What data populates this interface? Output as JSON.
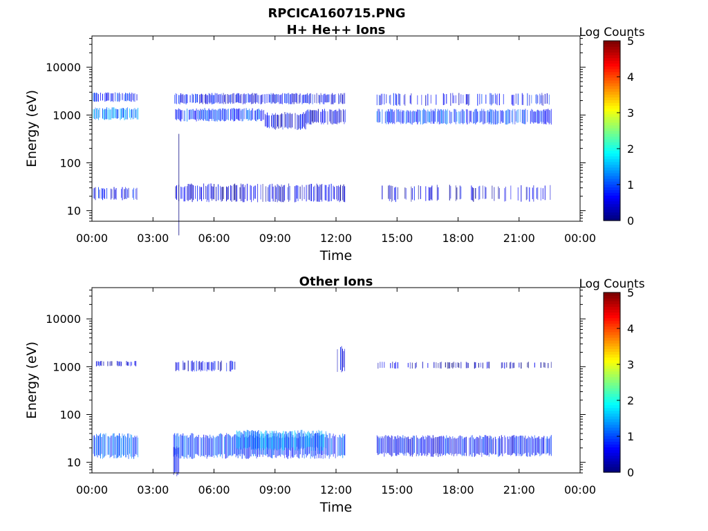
{
  "figure_title": "RPCICA160715.PNG",
  "chart_data": [
    {
      "type": "heatmap",
      "title": "H+ He++ Ions",
      "xlabel": "Time",
      "ylabel": "Energy (eV)",
      "yscale": "log",
      "xlim": [
        "00:00",
        "24:00"
      ],
      "ylim": [
        6,
        45000
      ],
      "x_ticks": [
        "00:00",
        "03:00",
        "06:00",
        "09:00",
        "12:00",
        "15:00",
        "18:00",
        "21:00",
        "00:00"
      ],
      "y_ticks": [
        "10",
        "100",
        "1000",
        "10000"
      ],
      "colorbar": {
        "label": "Log Counts",
        "ticks": [
          "0",
          "1",
          "2",
          "3",
          "4",
          "5"
        ],
        "range": [
          0,
          5
        ],
        "colormap": "jet"
      },
      "bands": [
        {
          "t0": 0.05,
          "t1": 2.25,
          "e_lo": 2000,
          "e_hi": 2900,
          "level": 0.7,
          "density": 0.8
        },
        {
          "t0": 0.05,
          "t1": 2.25,
          "e_lo": 850,
          "e_hi": 1400,
          "level": 1.3,
          "density": 0.9
        },
        {
          "t0": 0.05,
          "t1": 2.25,
          "e_lo": 18,
          "e_hi": 30,
          "level": 0.6,
          "density": 0.5
        },
        {
          "t0": 4.05,
          "t1": 12.45,
          "e_lo": 1800,
          "e_hi": 2800,
          "level": 0.6,
          "density": 0.85
        },
        {
          "t0": 4.05,
          "t1": 8.5,
          "e_lo": 800,
          "e_hi": 1350,
          "level": 0.9,
          "density": 0.9
        },
        {
          "t0": 8.5,
          "t1": 10.5,
          "e_lo": 550,
          "e_hi": 1100,
          "level": 0.5,
          "density": 0.9
        },
        {
          "t0": 10.5,
          "t1": 12.45,
          "e_lo": 700,
          "e_hi": 1300,
          "level": 0.5,
          "density": 0.85
        },
        {
          "t0": 4.05,
          "t1": 12.45,
          "e_lo": 17,
          "e_hi": 35,
          "level": 0.4,
          "density": 0.75
        },
        {
          "t0": 4.0,
          "t1": 4.4,
          "e_lo": 6,
          "e_hi": 500,
          "level": 0.2,
          "density": 0.3
        },
        {
          "t0": 14.0,
          "t1": 22.6,
          "e_lo": 1700,
          "e_hi": 2800,
          "level": 0.6,
          "density": 0.4
        },
        {
          "t0": 14.0,
          "t1": 22.6,
          "e_lo": 700,
          "e_hi": 1300,
          "level": 0.9,
          "density": 0.85
        },
        {
          "t0": 14.0,
          "t1": 22.6,
          "e_lo": 17,
          "e_hi": 33,
          "level": 0.4,
          "density": 0.35
        }
      ]
    },
    {
      "type": "heatmap",
      "title": "Other Ions",
      "xlabel": "Time",
      "ylabel": "Energy (eV)",
      "yscale": "log",
      "xlim": [
        "00:00",
        "24:00"
      ],
      "ylim": [
        6,
        45000
      ],
      "x_ticks": [
        "00:00",
        "03:00",
        "06:00",
        "09:00",
        "12:00",
        "15:00",
        "18:00",
        "21:00",
        "00:00"
      ],
      "y_ticks": [
        "10",
        "100",
        "1000",
        "10000"
      ],
      "colorbar": {
        "label": "Log Counts",
        "ticks": [
          "0",
          "1",
          "2",
          "3",
          "4",
          "5"
        ],
        "range": [
          0,
          5
        ],
        "colormap": "jet"
      },
      "bands": [
        {
          "t0": 0.1,
          "t1": 2.2,
          "e_lo": 1050,
          "e_hi": 1300,
          "level": 0.4,
          "density": 0.4
        },
        {
          "t0": 0.05,
          "t1": 2.25,
          "e_lo": 14,
          "e_hi": 38,
          "level": 1.0,
          "density": 0.95
        },
        {
          "t0": 4.0,
          "t1": 7.1,
          "e_lo": 850,
          "e_hi": 1300,
          "level": 0.5,
          "density": 0.6
        },
        {
          "t0": 4.0,
          "t1": 12.45,
          "e_lo": 14,
          "e_hi": 38,
          "level": 0.9,
          "density": 0.95
        },
        {
          "t0": 7.1,
          "t1": 11.5,
          "e_lo": 20,
          "e_hi": 45,
          "level": 1.3,
          "density": 0.95
        },
        {
          "t0": 4.0,
          "t1": 4.3,
          "e_lo": 6,
          "e_hi": 20,
          "level": 0.5,
          "density": 0.9
        },
        {
          "t0": 12.0,
          "t1": 12.45,
          "e_lo": 900,
          "e_hi": 2500,
          "level": 0.6,
          "density": 0.6
        },
        {
          "t0": 14.0,
          "t1": 22.6,
          "e_lo": 950,
          "e_hi": 1250,
          "level": 0.3,
          "density": 0.35
        },
        {
          "t0": 14.0,
          "t1": 22.6,
          "e_lo": 15,
          "e_hi": 35,
          "level": 0.7,
          "density": 0.95
        }
      ]
    }
  ]
}
